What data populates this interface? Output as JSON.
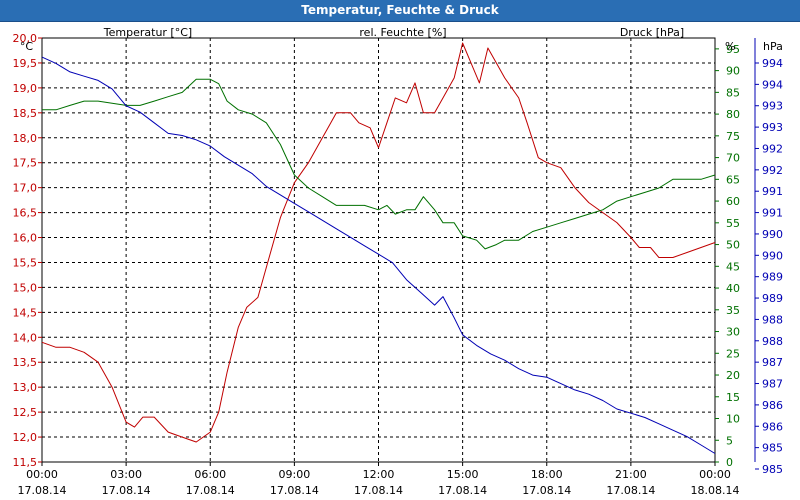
{
  "window": {
    "title": "Temperatur, Feuchte & Druck"
  },
  "chart_data": {
    "type": "line",
    "title": "Temperatur, Feuchte & Druck",
    "colors": {
      "temperature": "#c00000",
      "humidity": "#007000",
      "pressure": "#0000b4",
      "grid": "#000000"
    },
    "x_ticks": [
      {
        "time": "00:00",
        "date": "17.08.14"
      },
      {
        "time": "03:00",
        "date": "17.08.14"
      },
      {
        "time": "06:00",
        "date": "17.08.14"
      },
      {
        "time": "09:00",
        "date": "17.08.14"
      },
      {
        "time": "12:00",
        "date": "17.08.14"
      },
      {
        "time": "15:00",
        "date": "17.08.14"
      },
      {
        "time": "18:00",
        "date": "17.08.14"
      },
      {
        "time": "21:00",
        "date": "17.08.14"
      },
      {
        "time": "00:00",
        "date": "18.08.14"
      }
    ],
    "x_range_hours": [
      0,
      24
    ],
    "axes": {
      "temperature": {
        "label": "Temperatur [°C]",
        "unit": "°C",
        "range": [
          11.5,
          20.0
        ],
        "ticks": [
          "20,0",
          "19,5",
          "19,0",
          "18,5",
          "18,0",
          "17,5",
          "17,0",
          "16,5",
          "16,0",
          "15,5",
          "15,0",
          "14,5",
          "14,0",
          "13,5",
          "13,0",
          "12,5",
          "12,0",
          "11,5"
        ]
      },
      "humidity": {
        "label": "rel. Feuchte [%]",
        "unit": "%",
        "range": [
          0,
          97.5
        ],
        "ticks": [
          "95",
          "90",
          "85",
          "80",
          "75",
          "70",
          "65",
          "60",
          "55",
          "50",
          "45",
          "40",
          "35",
          "30",
          "25",
          "20",
          "15",
          "10",
          "5",
          "0"
        ]
      },
      "pressure": {
        "label": "Druck [hPa]",
        "unit": "hPa",
        "range": [
          984.6,
          994.6
        ],
        "ticks": [
          "994",
          "994",
          "993",
          "993",
          "992",
          "992",
          "991",
          "991",
          "990",
          "990",
          "989",
          "989",
          "988",
          "988",
          "987",
          "987",
          "986",
          "986",
          "985",
          "985"
        ]
      }
    },
    "series": [
      {
        "name": "Temperatur",
        "axis": "temperature",
        "points": [
          [
            0,
            13.9
          ],
          [
            0.5,
            13.8
          ],
          [
            1,
            13.8
          ],
          [
            1.5,
            13.7
          ],
          [
            2,
            13.5
          ],
          [
            2.5,
            13.0
          ],
          [
            3,
            12.3
          ],
          [
            3.3,
            12.2
          ],
          [
            3.6,
            12.4
          ],
          [
            4,
            12.4
          ],
          [
            4.5,
            12.1
          ],
          [
            5,
            12.0
          ],
          [
            5.5,
            11.9
          ],
          [
            6,
            12.1
          ],
          [
            6.3,
            12.5
          ],
          [
            6.6,
            13.3
          ],
          [
            7,
            14.2
          ],
          [
            7.3,
            14.6
          ],
          [
            7.7,
            14.8
          ],
          [
            8,
            15.4
          ],
          [
            8.5,
            16.4
          ],
          [
            9,
            17.1
          ],
          [
            9.5,
            17.5
          ],
          [
            10,
            18.0
          ],
          [
            10.5,
            18.5
          ],
          [
            11,
            18.5
          ],
          [
            11.3,
            18.3
          ],
          [
            11.7,
            18.2
          ],
          [
            12,
            17.8
          ],
          [
            12.3,
            18.3
          ],
          [
            12.6,
            18.8
          ],
          [
            13,
            18.7
          ],
          [
            13.3,
            19.1
          ],
          [
            13.6,
            18.5
          ],
          [
            14,
            18.5
          ],
          [
            14.3,
            18.8
          ],
          [
            14.7,
            19.2
          ],
          [
            15,
            19.9
          ],
          [
            15.3,
            19.5
          ],
          [
            15.6,
            19.1
          ],
          [
            15.9,
            19.8
          ],
          [
            16.2,
            19.5
          ],
          [
            16.5,
            19.2
          ],
          [
            17,
            18.8
          ],
          [
            17.3,
            18.3
          ],
          [
            17.7,
            17.6
          ],
          [
            18,
            17.5
          ],
          [
            18.5,
            17.4
          ],
          [
            19,
            17.0
          ],
          [
            19.5,
            16.7
          ],
          [
            20,
            16.5
          ],
          [
            20.5,
            16.3
          ],
          [
            21,
            16.0
          ],
          [
            21.3,
            15.8
          ],
          [
            21.7,
            15.8
          ],
          [
            22,
            15.6
          ],
          [
            22.5,
            15.6
          ],
          [
            23,
            15.7
          ],
          [
            23.5,
            15.8
          ],
          [
            24,
            15.9
          ]
        ]
      },
      {
        "name": "rel. Feuchte",
        "axis": "humidity",
        "points": [
          [
            0,
            81
          ],
          [
            0.5,
            81
          ],
          [
            1,
            82
          ],
          [
            1.5,
            83
          ],
          [
            2,
            83
          ],
          [
            2.5,
            82.5
          ],
          [
            3,
            82
          ],
          [
            3.5,
            82
          ],
          [
            4,
            83
          ],
          [
            4.5,
            84
          ],
          [
            5,
            85
          ],
          [
            5.5,
            88
          ],
          [
            6,
            88
          ],
          [
            6.3,
            87
          ],
          [
            6.6,
            83
          ],
          [
            7,
            81
          ],
          [
            7.5,
            80
          ],
          [
            8,
            78
          ],
          [
            8.5,
            73
          ],
          [
            9,
            66
          ],
          [
            9.5,
            63
          ],
          [
            10,
            61
          ],
          [
            10.5,
            59
          ],
          [
            11,
            59
          ],
          [
            11.5,
            59
          ],
          [
            12,
            58
          ],
          [
            12.3,
            59
          ],
          [
            12.6,
            57
          ],
          [
            13,
            58
          ],
          [
            13.3,
            58
          ],
          [
            13.6,
            61
          ],
          [
            14,
            58
          ],
          [
            14.3,
            55
          ],
          [
            14.7,
            55
          ],
          [
            15,
            52
          ],
          [
            15.5,
            51
          ],
          [
            15.8,
            49
          ],
          [
            16.2,
            50
          ],
          [
            16.5,
            51
          ],
          [
            17,
            51
          ],
          [
            17.5,
            53
          ],
          [
            18,
            54
          ],
          [
            18.5,
            55
          ],
          [
            19,
            56
          ],
          [
            19.5,
            57
          ],
          [
            20,
            58
          ],
          [
            20.5,
            60
          ],
          [
            21,
            61
          ],
          [
            21.5,
            62
          ],
          [
            22,
            63
          ],
          [
            22.5,
            65
          ],
          [
            23,
            65
          ],
          [
            23.5,
            65
          ],
          [
            24,
            66
          ]
        ]
      },
      {
        "name": "Druck",
        "axis": "pressure",
        "points": [
          [
            0,
            994.15
          ],
          [
            0.5,
            994.0
          ],
          [
            1,
            993.8
          ],
          [
            1.5,
            993.7
          ],
          [
            2,
            993.6
          ],
          [
            2.5,
            993.4
          ],
          [
            3,
            993.0
          ],
          [
            3.5,
            992.85
          ],
          [
            4,
            992.6
          ],
          [
            4.5,
            992.35
          ],
          [
            5,
            992.3
          ],
          [
            5.5,
            992.2
          ],
          [
            6,
            992.05
          ],
          [
            6.5,
            991.8
          ],
          [
            7,
            991.6
          ],
          [
            7.5,
            991.4
          ],
          [
            8,
            991.1
          ],
          [
            8.5,
            990.9
          ],
          [
            9,
            990.7
          ],
          [
            9.5,
            990.5
          ],
          [
            10,
            990.3
          ],
          [
            10.5,
            990.1
          ],
          [
            11,
            989.9
          ],
          [
            11.5,
            989.7
          ],
          [
            12,
            989.5
          ],
          [
            12.5,
            989.3
          ],
          [
            13,
            988.9
          ],
          [
            13.5,
            988.6
          ],
          [
            14,
            988.3
          ],
          [
            14.3,
            988.5
          ],
          [
            14.7,
            988.0
          ],
          [
            15,
            987.6
          ],
          [
            15.5,
            987.35
          ],
          [
            16,
            987.15
          ],
          [
            16.5,
            987.0
          ],
          [
            17,
            986.8
          ],
          [
            17.5,
            986.65
          ],
          [
            18,
            986.6
          ],
          [
            18.5,
            986.45
          ],
          [
            19,
            986.3
          ],
          [
            19.5,
            986.2
          ],
          [
            20,
            986.05
          ],
          [
            20.5,
            985.85
          ],
          [
            21,
            985.75
          ],
          [
            21.5,
            985.65
          ],
          [
            22,
            985.5
          ],
          [
            22.5,
            985.35
          ],
          [
            23,
            985.2
          ],
          [
            23.5,
            985.0
          ],
          [
            24,
            984.8
          ]
        ]
      }
    ]
  }
}
